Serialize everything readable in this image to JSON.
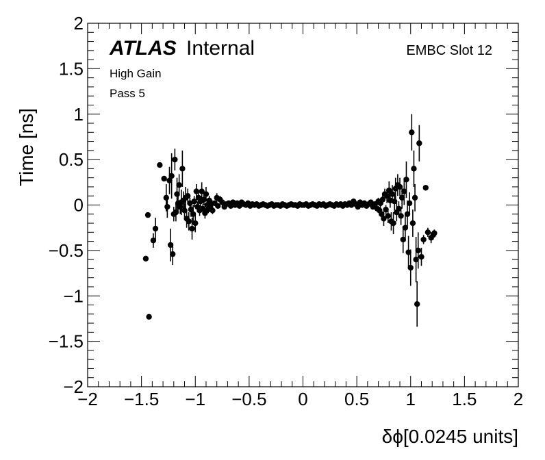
{
  "chart_data": {
    "type": "scatter",
    "xlabel": "δϕ[0.0245 units]",
    "ylabel": "Time [ns]",
    "xlim": [
      -2,
      2
    ],
    "ylim": [
      -2,
      2
    ],
    "x_ticks": [
      -2,
      -1.5,
      -1,
      -0.5,
      0,
      0.5,
      1,
      1.5,
      2
    ],
    "x_tick_labels": [
      "−2",
      "−1.5",
      "−1",
      "−0.5",
      "0",
      "0.5",
      "1",
      "1.5",
      "2"
    ],
    "y_ticks": [
      -2,
      -1.5,
      -1,
      -0.5,
      0,
      0.5,
      1,
      1.5,
      2
    ],
    "y_tick_labels": [
      "−2",
      "−1.5",
      "−1",
      "−0.5",
      "0",
      "0.5",
      "1",
      "1.5",
      "2"
    ],
    "grid": false,
    "legend": "none",
    "marker_color": "#000000",
    "annotations": {
      "atlas": "ATLAS",
      "internal": "Internal",
      "gain": "High Gain",
      "pass": "Pass 5",
      "slot": "EMBC Slot 12"
    },
    "series": [
      {
        "points": [
          {
            "x": -1.46,
            "y": -0.59,
            "e": 0
          },
          {
            "x": -1.44,
            "y": -0.11,
            "e": 0
          },
          {
            "x": -1.43,
            "y": -1.23,
            "e": 0
          },
          {
            "x": -1.39,
            "y": -0.39,
            "e": 0.08
          },
          {
            "x": -1.37,
            "y": -0.26,
            "e": 0.12
          },
          {
            "x": -1.33,
            "y": 0.44,
            "e": 0
          },
          {
            "x": -1.29,
            "y": 0.29,
            "e": 0
          },
          {
            "x": -1.27,
            "y": 0.08,
            "e": 0.15
          },
          {
            "x": -1.26,
            "y": -0.02,
            "e": 0.12
          },
          {
            "x": -1.24,
            "y": 0.27,
            "e": 0.15
          },
          {
            "x": -1.23,
            "y": -0.44,
            "e": 0.18
          },
          {
            "x": -1.22,
            "y": 0.32,
            "e": 0.25
          },
          {
            "x": -1.21,
            "y": -0.54,
            "e": 0.12
          },
          {
            "x": -1.2,
            "y": -0.1,
            "e": 0.08
          },
          {
            "x": -1.19,
            "y": 0.5,
            "e": 0.12
          },
          {
            "x": -1.18,
            "y": -0.08,
            "e": 0.1
          },
          {
            "x": -1.17,
            "y": 0.12,
            "e": 0.18
          },
          {
            "x": -1.16,
            "y": 0.02,
            "e": 0.1
          },
          {
            "x": -1.15,
            "y": 0.22,
            "e": 0.12
          },
          {
            "x": -1.14,
            "y": -0.02,
            "e": 0.08
          },
          {
            "x": -1.13,
            "y": 0.03,
            "e": 0.14
          },
          {
            "x": -1.12,
            "y": 0.4,
            "e": 0.2
          },
          {
            "x": -1.11,
            "y": 0.05,
            "e": 0.1
          },
          {
            "x": -1.1,
            "y": -0.06,
            "e": 0.08
          },
          {
            "x": -1.09,
            "y": 0.08,
            "e": 0.12
          },
          {
            "x": -1.08,
            "y": -0.15,
            "e": 0.1
          },
          {
            "x": -1.07,
            "y": 0.1,
            "e": 0.08
          },
          {
            "x": -1.06,
            "y": -0.18,
            "e": 0.1
          },
          {
            "x": -1.05,
            "y": 0.02,
            "e": 0.06
          },
          {
            "x": -1.04,
            "y": -0.05,
            "e": 0.08
          },
          {
            "x": -1.03,
            "y": -0.26,
            "e": 0.12
          },
          {
            "x": -1.02,
            "y": -0.1,
            "e": 0.1
          },
          {
            "x": -1.01,
            "y": 0.04,
            "e": 0.06
          },
          {
            "x": -1.0,
            "y": -0.2,
            "e": 0.1
          },
          {
            "x": -0.99,
            "y": 0.15,
            "e": 0.08
          },
          {
            "x": -0.98,
            "y": -0.02,
            "e": 0.06
          },
          {
            "x": -0.97,
            "y": 0.08,
            "e": 0.08
          },
          {
            "x": -0.96,
            "y": -0.06,
            "e": 0.06
          },
          {
            "x": -0.95,
            "y": 0.04,
            "e": 0.06
          },
          {
            "x": -0.94,
            "y": 0.15,
            "e": 0.1
          },
          {
            "x": -0.93,
            "y": -0.04,
            "e": 0.05
          },
          {
            "x": -0.92,
            "y": 0.06,
            "e": 0.06
          },
          {
            "x": -0.91,
            "y": -0.09,
            "e": 0.06
          },
          {
            "x": -0.9,
            "y": 0.12,
            "e": 0.08
          },
          {
            "x": -0.89,
            "y": 0.0,
            "e": 0.05
          },
          {
            "x": -0.88,
            "y": -0.05,
            "e": 0.04
          },
          {
            "x": -0.87,
            "y": 0.05,
            "e": 0.05
          },
          {
            "x": -0.86,
            "y": -0.02,
            "e": 0.04
          },
          {
            "x": -0.85,
            "y": 0.02,
            "e": 0.04
          },
          {
            "x": -0.84,
            "y": -0.06,
            "e": 0.04
          },
          {
            "x": -0.82,
            "y": 0.02,
            "e": 0.03
          },
          {
            "x": -0.8,
            "y": 0.08,
            "e": 0.05
          },
          {
            "x": -0.79,
            "y": -0.01,
            "e": 0.03
          },
          {
            "x": -0.77,
            "y": 0.06,
            "e": 0.04
          },
          {
            "x": -0.75,
            "y": 0.03,
            "e": 0.03
          },
          {
            "x": -0.73,
            "y": -0.02,
            "e": 0.02
          },
          {
            "x": -0.71,
            "y": 0.01,
            "e": 0.02
          },
          {
            "x": -0.69,
            "y": 0.02,
            "e": 0.02
          },
          {
            "x": -0.67,
            "y": -0.01,
            "e": 0.02
          },
          {
            "x": -0.65,
            "y": 0.03,
            "e": 0.02
          },
          {
            "x": -0.63,
            "y": 0.0,
            "e": 0.02
          },
          {
            "x": -0.61,
            "y": 0.02,
            "e": 0.01
          },
          {
            "x": -0.59,
            "y": -0.01,
            "e": 0.01
          },
          {
            "x": -0.57,
            "y": 0.03,
            "e": 0.01
          },
          {
            "x": -0.55,
            "y": 0.01,
            "e": 0.01
          },
          {
            "x": -0.53,
            "y": 0.0,
            "e": 0.01
          },
          {
            "x": -0.51,
            "y": 0.02,
            "e": 0.01
          },
          {
            "x": -0.49,
            "y": -0.01,
            "e": 0.01
          },
          {
            "x": -0.47,
            "y": 0.01,
            "e": 0.01
          },
          {
            "x": -0.45,
            "y": 0.0,
            "e": 0.01
          },
          {
            "x": -0.43,
            "y": 0.01,
            "e": 0.01
          },
          {
            "x": -0.41,
            "y": -0.01,
            "e": 0.01
          },
          {
            "x": -0.39,
            "y": 0.0,
            "e": 0.01
          },
          {
            "x": -0.37,
            "y": 0.01,
            "e": 0.01
          },
          {
            "x": -0.35,
            "y": 0.0,
            "e": 0.01
          },
          {
            "x": -0.33,
            "y": -0.01,
            "e": 0.01
          },
          {
            "x": -0.31,
            "y": 0.0,
            "e": 0.01
          },
          {
            "x": -0.29,
            "y": 0.01,
            "e": 0.01
          },
          {
            "x": -0.27,
            "y": -0.01,
            "e": 0.01
          },
          {
            "x": -0.25,
            "y": 0.0,
            "e": 0.01
          },
          {
            "x": -0.23,
            "y": 0.0,
            "e": 0.01
          },
          {
            "x": -0.21,
            "y": -0.01,
            "e": 0.01
          },
          {
            "x": -0.19,
            "y": 0.01,
            "e": 0.01
          },
          {
            "x": -0.17,
            "y": 0.0,
            "e": 0.01
          },
          {
            "x": -0.15,
            "y": -0.01,
            "e": 0.01
          },
          {
            "x": -0.13,
            "y": 0.0,
            "e": 0.01
          },
          {
            "x": -0.11,
            "y": 0.01,
            "e": 0.01
          },
          {
            "x": -0.09,
            "y": 0.0,
            "e": 0.01
          },
          {
            "x": -0.07,
            "y": 0.0,
            "e": 0.01
          },
          {
            "x": -0.05,
            "y": -0.01,
            "e": 0.01
          },
          {
            "x": -0.03,
            "y": 0.01,
            "e": 0.01
          },
          {
            "x": -0.01,
            "y": 0.0,
            "e": 0.01
          },
          {
            "x": 0.01,
            "y": 0.0,
            "e": 0.01
          },
          {
            "x": 0.03,
            "y": 0.01,
            "e": 0.01
          },
          {
            "x": 0.05,
            "y": -0.01,
            "e": 0.01
          },
          {
            "x": 0.07,
            "y": 0.0,
            "e": 0.01
          },
          {
            "x": 0.09,
            "y": 0.01,
            "e": 0.01
          },
          {
            "x": 0.11,
            "y": 0.0,
            "e": 0.01
          },
          {
            "x": 0.13,
            "y": -0.01,
            "e": 0.01
          },
          {
            "x": 0.15,
            "y": 0.01,
            "e": 0.01
          },
          {
            "x": 0.17,
            "y": 0.0,
            "e": 0.01
          },
          {
            "x": 0.19,
            "y": 0.01,
            "e": 0.01
          },
          {
            "x": 0.21,
            "y": -0.01,
            "e": 0.01
          },
          {
            "x": 0.23,
            "y": 0.0,
            "e": 0.01
          },
          {
            "x": 0.25,
            "y": 0.01,
            "e": 0.01
          },
          {
            "x": 0.27,
            "y": 0.0,
            "e": 0.01
          },
          {
            "x": 0.29,
            "y": -0.01,
            "e": 0.01
          },
          {
            "x": 0.31,
            "y": 0.01,
            "e": 0.01
          },
          {
            "x": 0.33,
            "y": 0.0,
            "e": 0.01
          },
          {
            "x": 0.35,
            "y": 0.01,
            "e": 0.01
          },
          {
            "x": 0.37,
            "y": -0.01,
            "e": 0.01
          },
          {
            "x": 0.39,
            "y": 0.01,
            "e": 0.01
          },
          {
            "x": 0.41,
            "y": 0.0,
            "e": 0.01
          },
          {
            "x": 0.43,
            "y": 0.02,
            "e": 0.01
          },
          {
            "x": 0.45,
            "y": 0.0,
            "e": 0.01
          },
          {
            "x": 0.47,
            "y": 0.04,
            "e": 0.02
          },
          {
            "x": 0.49,
            "y": 0.01,
            "e": 0.01
          },
          {
            "x": 0.51,
            "y": -0.02,
            "e": 0.02
          },
          {
            "x": 0.53,
            "y": 0.03,
            "e": 0.02
          },
          {
            "x": 0.55,
            "y": 0.0,
            "e": 0.02
          },
          {
            "x": 0.57,
            "y": 0.02,
            "e": 0.02
          },
          {
            "x": 0.59,
            "y": -0.01,
            "e": 0.02
          },
          {
            "x": 0.61,
            "y": 0.01,
            "e": 0.02
          },
          {
            "x": 0.63,
            "y": 0.03,
            "e": 0.02
          },
          {
            "x": 0.65,
            "y": -0.02,
            "e": 0.03
          },
          {
            "x": 0.67,
            "y": 0.01,
            "e": 0.03
          },
          {
            "x": 0.69,
            "y": -0.04,
            "e": 0.03
          },
          {
            "x": 0.7,
            "y": 0.04,
            "e": 0.04
          },
          {
            "x": 0.71,
            "y": -0.06,
            "e": 0.04
          },
          {
            "x": 0.72,
            "y": 0.02,
            "e": 0.05
          },
          {
            "x": 0.73,
            "y": -0.1,
            "e": 0.06
          },
          {
            "x": 0.74,
            "y": 0.06,
            "e": 0.05
          },
          {
            "x": 0.75,
            "y": -0.15,
            "e": 0.08
          },
          {
            "x": 0.76,
            "y": 0.12,
            "e": 0.06
          },
          {
            "x": 0.77,
            "y": -0.05,
            "e": 0.05
          },
          {
            "x": 0.78,
            "y": 0.1,
            "e": 0.08
          },
          {
            "x": 0.79,
            "y": -0.12,
            "e": 0.08
          },
          {
            "x": 0.8,
            "y": 0.16,
            "e": 0.1
          },
          {
            "x": 0.81,
            "y": 0.05,
            "e": 0.08
          },
          {
            "x": 0.82,
            "y": -0.18,
            "e": 0.1
          },
          {
            "x": 0.83,
            "y": 0.12,
            "e": 0.1
          },
          {
            "x": 0.84,
            "y": -0.2,
            "e": 0.12
          },
          {
            "x": 0.85,
            "y": 0.04,
            "e": 0.1
          },
          {
            "x": 0.86,
            "y": 0.18,
            "e": 0.12
          },
          {
            "x": 0.87,
            "y": -0.08,
            "e": 0.1
          },
          {
            "x": 0.88,
            "y": 0.22,
            "e": 0.12
          },
          {
            "x": 0.89,
            "y": -0.04,
            "e": 0.08
          },
          {
            "x": 0.9,
            "y": 0.2,
            "e": 0.1
          },
          {
            "x": 0.91,
            "y": -0.12,
            "e": 0.1
          },
          {
            "x": 0.92,
            "y": 0.08,
            "e": 0.12
          },
          {
            "x": 0.93,
            "y": -0.38,
            "e": 0.15
          },
          {
            "x": 0.94,
            "y": 0.15,
            "e": 0.15
          },
          {
            "x": 0.95,
            "y": -0.25,
            "e": 0.15
          },
          {
            "x": 0.96,
            "y": 0.28,
            "e": 0.2
          },
          {
            "x": 0.97,
            "y": -0.1,
            "e": 0.15
          },
          {
            "x": 0.98,
            "y": -0.52,
            "e": 0.18
          },
          {
            "x": 0.99,
            "y": 0.02,
            "e": 0.12
          },
          {
            "x": 1.0,
            "y": -0.69,
            "e": 0.2
          },
          {
            "x": 1.01,
            "y": 0.8,
            "e": 0.2
          },
          {
            "x": 1.02,
            "y": -0.2,
            "e": 0.15
          },
          {
            "x": 1.03,
            "y": 0.4,
            "e": 0.2
          },
          {
            "x": 1.04,
            "y": 0.08,
            "e": 0.15
          },
          {
            "x": 1.05,
            "y": -0.6,
            "e": 0.25
          },
          {
            "x": 1.06,
            "y": -1.09,
            "e": 0.25
          },
          {
            "x": 1.07,
            "y": -0.5,
            "e": 0.2
          },
          {
            "x": 1.08,
            "y": 0.68,
            "e": 0.2
          },
          {
            "x": 1.1,
            "y": -0.57,
            "e": 0.1
          },
          {
            "x": 1.12,
            "y": -0.38,
            "e": 0.05
          },
          {
            "x": 1.14,
            "y": 0.19,
            "e": 0
          },
          {
            "x": 1.16,
            "y": -0.3,
            "e": 0.05
          },
          {
            "x": 1.19,
            "y": -0.36,
            "e": 0.06
          },
          {
            "x": 1.21,
            "y": -0.33,
            "e": 0.05
          },
          {
            "x": 1.22,
            "y": -0.31,
            "e": 0.04
          }
        ]
      }
    ]
  }
}
